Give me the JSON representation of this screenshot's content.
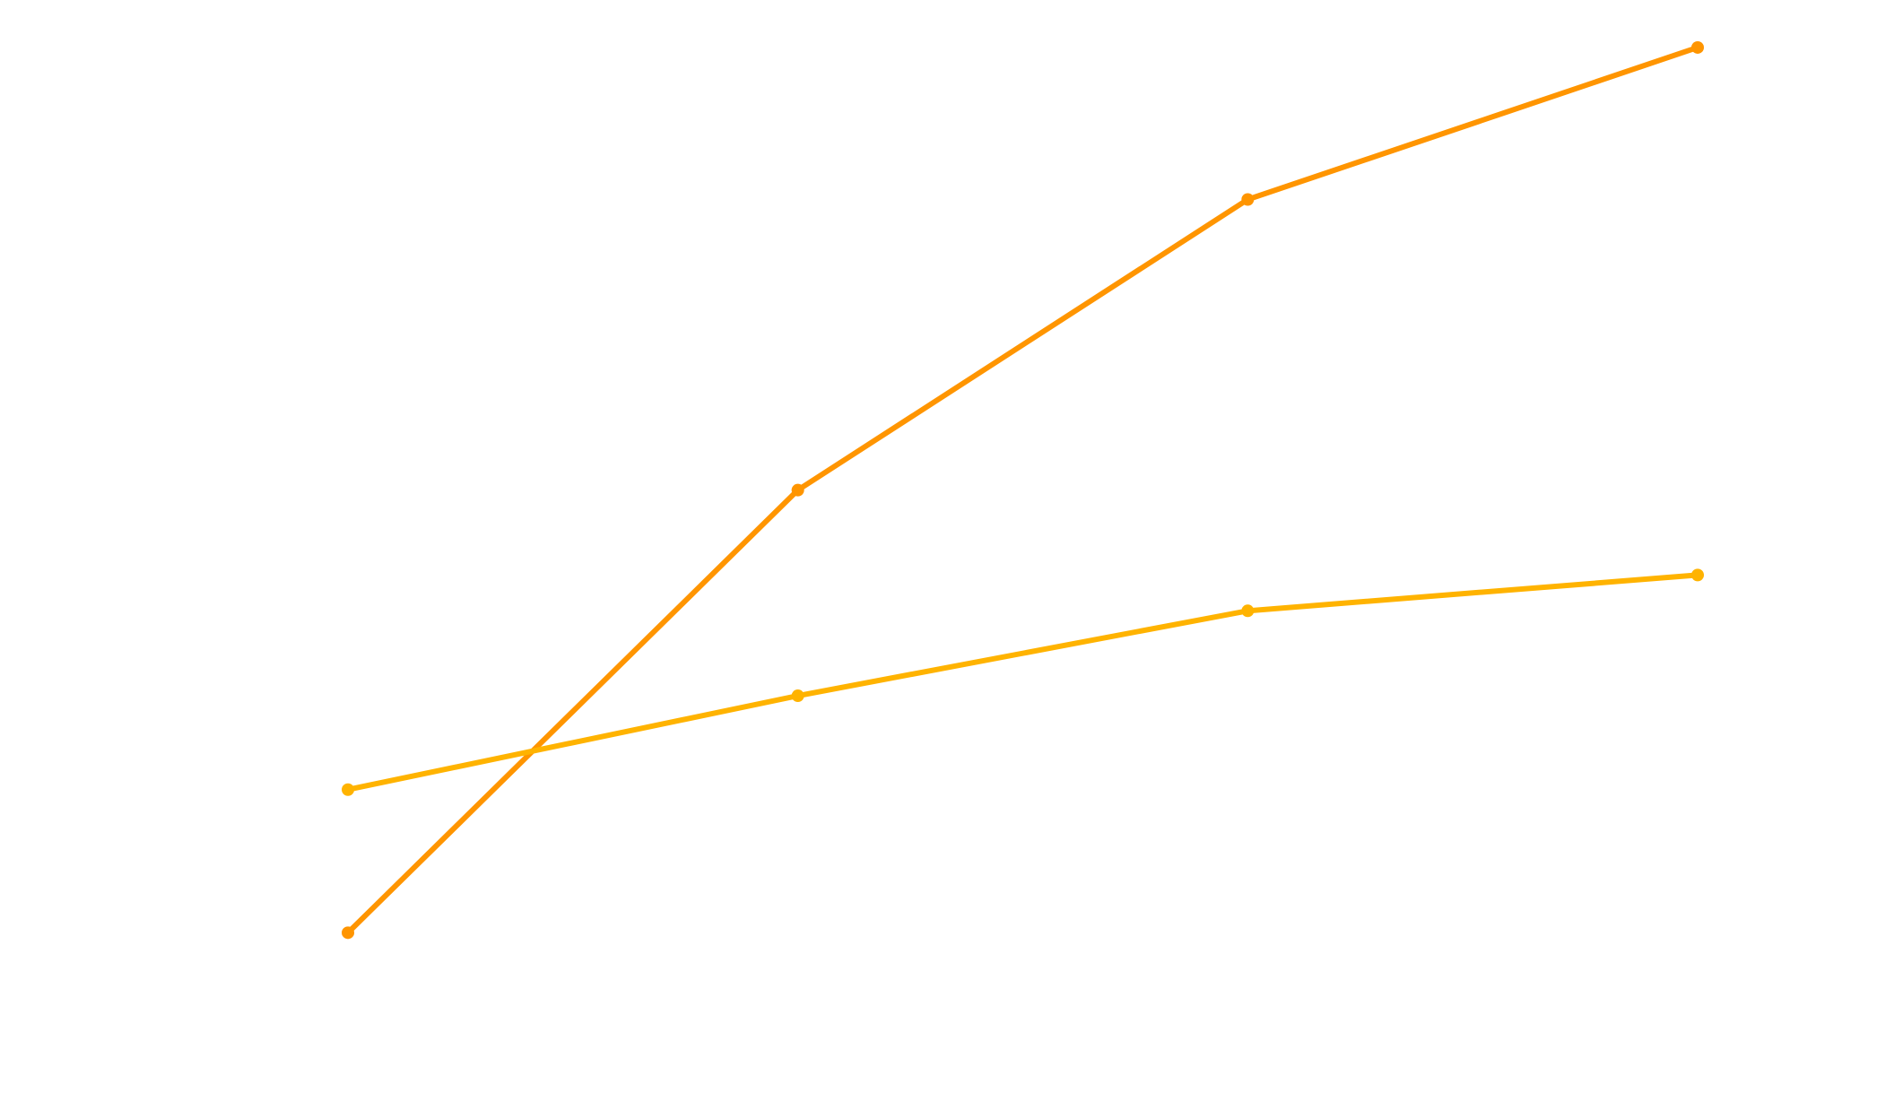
{
  "chart_data": {
    "type": "line",
    "x": [
      1,
      2,
      3,
      4
    ],
    "xlim": [
      0.25,
      4.5
    ],
    "ylim": [
      0,
      22.5
    ],
    "grid": false,
    "legend": "none",
    "series": [
      {
        "color": "#FF9500",
        "values": [
          2.4,
          12.3,
          18.8,
          22.2
        ]
      },
      {
        "color": "#FFB300",
        "values": [
          5.6,
          7.7,
          9.6,
          10.4
        ]
      }
    ]
  }
}
